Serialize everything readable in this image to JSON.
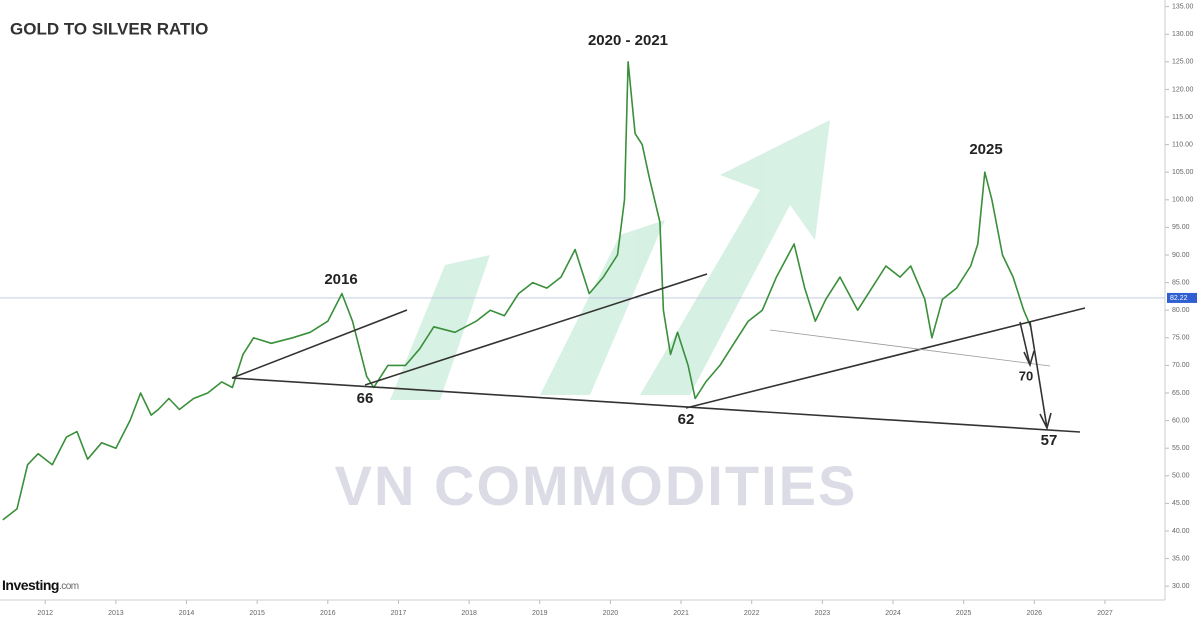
{
  "chart_data": {
    "type": "line",
    "title": "GOLD TO SILVER RATIO",
    "watermark": "VN COMMODITIES",
    "brand": "Investing",
    "brand_suffix": ".com",
    "annotations": [
      "2016",
      "2020 - 2021",
      "2025",
      "66",
      "62",
      "70",
      "57"
    ],
    "color": "#3a8f3a",
    "price_line": 82.22,
    "x": [
      2011.4,
      2011.6,
      2011.75,
      2011.9,
      2012.1,
      2012.3,
      2012.45,
      2012.6,
      2012.8,
      2013.0,
      2013.2,
      2013.35,
      2013.5,
      2013.6,
      2013.75,
      2013.9,
      2014.1,
      2014.3,
      2014.5,
      2014.65,
      2014.8,
      2014.95,
      2015.2,
      2015.5,
      2015.75,
      2016.0,
      2016.2,
      2016.35,
      2016.45,
      2016.55,
      2016.65,
      2016.85,
      2017.1,
      2017.3,
      2017.5,
      2017.8,
      2018.1,
      2018.3,
      2018.5,
      2018.7,
      2018.9,
      2019.1,
      2019.3,
      2019.5,
      2019.7,
      2019.9,
      2020.1,
      2020.2,
      2020.25,
      2020.35,
      2020.45,
      2020.55,
      2020.7,
      2020.75,
      2020.85,
      2020.95,
      2021.1,
      2021.2,
      2021.35,
      2021.55,
      2021.75,
      2021.95,
      2022.15,
      2022.35,
      2022.6,
      2022.75,
      2022.9,
      2023.05,
      2023.25,
      2023.5,
      2023.7,
      2023.9,
      2024.1,
      2024.25,
      2024.45,
      2024.55,
      2024.7,
      2024.9,
      2025.1,
      2025.2,
      2025.3,
      2025.4,
      2025.55,
      2025.7,
      2025.85,
      2025.95
    ],
    "values": [
      42,
      44,
      52,
      54,
      52,
      57,
      58,
      53,
      56,
      55,
      60,
      65,
      61,
      62,
      64,
      62,
      64,
      65,
      67,
      66,
      72,
      75,
      74,
      75,
      76,
      78,
      83,
      78,
      73,
      68,
      66,
      70,
      70,
      73,
      77,
      76,
      78,
      80,
      79,
      83,
      85,
      84,
      86,
      91,
      83,
      86,
      90,
      100,
      125,
      112,
      110,
      104,
      96,
      80,
      72,
      76,
      70,
      64,
      67,
      70,
      74,
      78,
      80,
      86,
      92,
      84,
      78,
      82,
      86,
      80,
      84,
      88,
      86,
      88,
      82,
      75,
      82,
      84,
      88,
      92,
      105,
      100,
      90,
      86,
      80,
      77
    ],
    "xlim": [
      2011.36,
      2027.85
    ],
    "ylim": [
      28.4,
      136.2
    ],
    "xticks": [
      2012,
      2013,
      2014,
      2015,
      2016,
      2017,
      2018,
      2019,
      2020,
      2021,
      2022,
      2023,
      2024,
      2025,
      2026,
      2027
    ],
    "yticks": [
      {
        "value": 30,
        "label": "30.00"
      },
      {
        "value": 35,
        "label": "35.00"
      },
      {
        "value": 40,
        "label": "40.00"
      },
      {
        "value": 45,
        "label": "45.00"
      },
      {
        "value": 50,
        "label": "50.00"
      },
      {
        "value": 55,
        "label": "55.00"
      },
      {
        "value": 60,
        "label": "60.00"
      },
      {
        "value": 65,
        "label": "65.00"
      },
      {
        "value": 70,
        "label": "70.00"
      },
      {
        "value": 75,
        "label": "75.00"
      },
      {
        "value": 80,
        "label": "80.00"
      },
      {
        "value": 85,
        "label": "85.00"
      },
      {
        "value": 90,
        "label": "90.00"
      },
      {
        "value": 95,
        "label": "95.00"
      },
      {
        "value": 100,
        "label": "100.00"
      },
      {
        "value": 105,
        "label": "105.00"
      },
      {
        "value": 110,
        "label": "110.00"
      },
      {
        "value": 115,
        "label": "115.00"
      },
      {
        "value": 120,
        "label": "120.00"
      },
      {
        "value": 125,
        "label": "125.00"
      },
      {
        "value": 130,
        "label": "130.00"
      },
      {
        "value": 135,
        "label": "135.00"
      }
    ]
  }
}
